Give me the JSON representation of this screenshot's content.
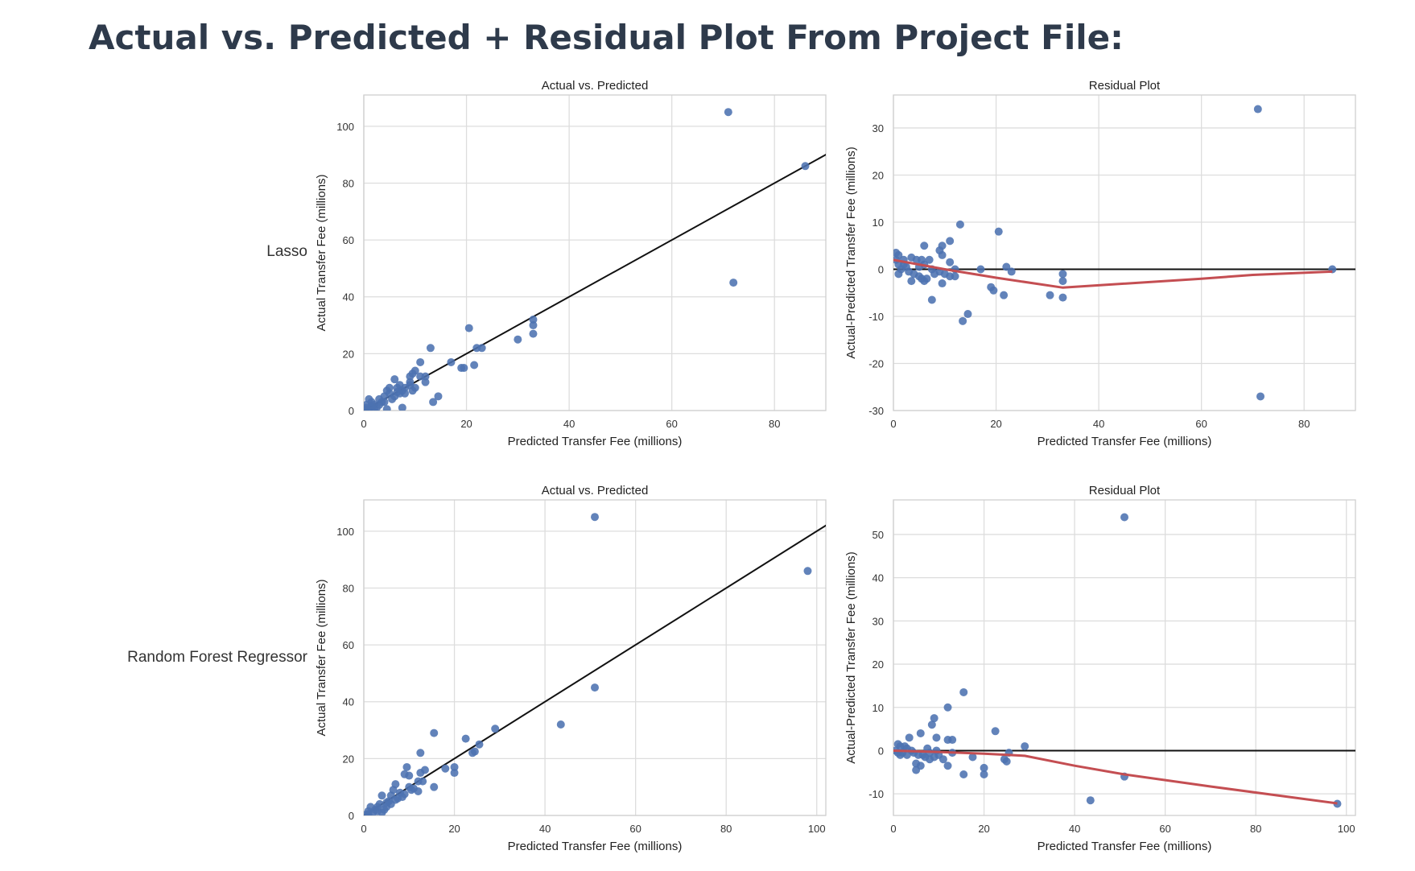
{
  "page": {
    "title": "Actual vs. Predicted + Residual Plot From Project File:",
    "rows": [
      {
        "label": "Lasso"
      },
      {
        "label": "Random Forest Regressor"
      }
    ]
  },
  "colors": {
    "points": "#4c72b0",
    "identity_line": "#111111",
    "zero_line": "#111111",
    "trend_line": "#c44e52",
    "grid": "#dddddd",
    "frame": "#cfcfcf"
  },
  "chart_data": [
    {
      "id": "lasso-actual-vs-predicted",
      "type": "scatter",
      "title": "Actual vs. Predicted",
      "xlabel": "Predicted Transfer Fee (millions)",
      "ylabel": "Actual Transfer Fee (millions)",
      "xlim": [
        0,
        90
      ],
      "ylim": [
        0,
        111
      ],
      "xticks": [
        0,
        20,
        40,
        60,
        80
      ],
      "yticks": [
        0,
        20,
        40,
        60,
        80,
        100
      ],
      "grid": true,
      "reference_line": {
        "type": "identity"
      },
      "points": [
        [
          71,
          105
        ],
        [
          86,
          86
        ],
        [
          72,
          45
        ],
        [
          33,
          32
        ],
        [
          33,
          30
        ],
        [
          33,
          27
        ],
        [
          30,
          25
        ],
        [
          20.5,
          29
        ],
        [
          22,
          22
        ],
        [
          23,
          22
        ],
        [
          21.5,
          16
        ],
        [
          19,
          15
        ],
        [
          19.5,
          15
        ],
        [
          17,
          17
        ],
        [
          13,
          22
        ],
        [
          14.5,
          5
        ],
        [
          13.5,
          3
        ],
        [
          11,
          17
        ],
        [
          12,
          12
        ],
        [
          12,
          10
        ],
        [
          11,
          12
        ],
        [
          10,
          14
        ],
        [
          9.5,
          13
        ],
        [
          9,
          12
        ],
        [
          10,
          8
        ],
        [
          9,
          9
        ],
        [
          8,
          8
        ],
        [
          9.5,
          7
        ],
        [
          7,
          9
        ],
        [
          6.5,
          8
        ],
        [
          6,
          11
        ],
        [
          7,
          6
        ],
        [
          6,
          5
        ],
        [
          5,
          6
        ],
        [
          4.5,
          7
        ],
        [
          5.5,
          4
        ],
        [
          4,
          5
        ],
        [
          4,
          3
        ],
        [
          3.5,
          3
        ],
        [
          7.5,
          1
        ],
        [
          3,
          2
        ],
        [
          2.5,
          1
        ],
        [
          2,
          2
        ],
        [
          1.5,
          3
        ],
        [
          1,
          4
        ],
        [
          0.5,
          2
        ],
        [
          0.5,
          1
        ],
        [
          1,
          0.5
        ],
        [
          0.3,
          0.3
        ],
        [
          1.5,
          1.5
        ],
        [
          5,
          8
        ],
        [
          8,
          6
        ],
        [
          6.5,
          6.5
        ],
        [
          7.5,
          7
        ],
        [
          9,
          10
        ],
        [
          3,
          4
        ],
        [
          2,
          0.5
        ],
        [
          4.5,
          0.5
        ]
      ]
    },
    {
      "id": "lasso-residual-plot",
      "type": "scatter",
      "title": "Residual Plot",
      "xlabel": "Predicted Transfer Fee (millions)",
      "ylabel": "Actual-Predicted Transfer Fee (millions)",
      "xlim": [
        0,
        90
      ],
      "ylim": [
        -30,
        37
      ],
      "xticks": [
        0,
        20,
        40,
        60,
        80
      ],
      "yticks": [
        -30,
        -20,
        -10,
        0,
        10,
        20,
        30
      ],
      "grid": true,
      "reference_line": {
        "type": "horizontal",
        "y": 0
      },
      "points": [
        [
          71,
          34
        ],
        [
          71.5,
          -27
        ],
        [
          85.5,
          0
        ],
        [
          20.5,
          8
        ],
        [
          13,
          9.5
        ],
        [
          11,
          6
        ],
        [
          9.5,
          5
        ],
        [
          6,
          5
        ],
        [
          9,
          4
        ],
        [
          9.5,
          3
        ],
        [
          0.5,
          3.5
        ],
        [
          1,
          3
        ],
        [
          0.5,
          2
        ],
        [
          2,
          2
        ],
        [
          3.5,
          2.5
        ],
        [
          4.5,
          2
        ],
        [
          5.5,
          2
        ],
        [
          7,
          2
        ],
        [
          6,
          1
        ],
        [
          11,
          1.5
        ],
        [
          1,
          1
        ],
        [
          1.5,
          0
        ],
        [
          2.5,
          0.5
        ],
        [
          3,
          -0.5
        ],
        [
          1,
          -1
        ],
        [
          4,
          -1
        ],
        [
          5,
          -1.5
        ],
        [
          5.5,
          -2
        ],
        [
          6.5,
          -2
        ],
        [
          8,
          -1
        ],
        [
          9,
          -0.5
        ],
        [
          10,
          -1
        ],
        [
          11,
          -1.5
        ],
        [
          12,
          0
        ],
        [
          17,
          0
        ],
        [
          22,
          0.5
        ],
        [
          23,
          -0.5
        ],
        [
          3.5,
          -2.5
        ],
        [
          6,
          -2.5
        ],
        [
          9.5,
          -3
        ],
        [
          12,
          -1.5
        ],
        [
          19,
          -3.8
        ],
        [
          19.5,
          -4.5
        ],
        [
          21.5,
          -5.5
        ],
        [
          30.5,
          -5.5
        ],
        [
          33,
          -1
        ],
        [
          33,
          -2.5
        ],
        [
          33,
          -6
        ],
        [
          7.5,
          -6.5
        ],
        [
          14.5,
          -9.5
        ],
        [
          13.5,
          -11
        ],
        [
          5,
          0.5
        ],
        [
          7.5,
          0
        ],
        [
          2,
          1
        ]
      ],
      "trend_line": [
        [
          0,
          2
        ],
        [
          5,
          1
        ],
        [
          10,
          0
        ],
        [
          20,
          -1.8
        ],
        [
          33,
          -3.9
        ],
        [
          60,
          -2
        ],
        [
          70,
          -1.2
        ],
        [
          85.5,
          -0.5
        ]
      ]
    },
    {
      "id": "rf-actual-vs-predicted",
      "type": "scatter",
      "title": "Actual vs. Predicted",
      "xlabel": "Predicted Transfer Fee (millions)",
      "ylabel": "Actual Transfer Fee (millions)",
      "xlim": [
        0,
        102
      ],
      "ylim": [
        0,
        111
      ],
      "xticks": [
        0,
        20,
        40,
        60,
        80,
        100
      ],
      "yticks": [
        0,
        20,
        40,
        60,
        80,
        100
      ],
      "grid": true,
      "reference_line": {
        "type": "identity"
      },
      "points": [
        [
          51,
          105
        ],
        [
          98,
          86
        ],
        [
          51,
          45
        ],
        [
          43.5,
          32
        ],
        [
          29,
          30.5
        ],
        [
          22.5,
          27
        ],
        [
          25.5,
          25
        ],
        [
          24.5,
          22.5
        ],
        [
          24,
          22
        ],
        [
          20,
          17
        ],
        [
          20,
          15
        ],
        [
          18,
          16.5
        ],
        [
          15.5,
          29
        ],
        [
          12.5,
          22
        ],
        [
          13.5,
          16
        ],
        [
          12.5,
          15
        ],
        [
          15.5,
          10
        ],
        [
          10,
          14
        ],
        [
          9,
          14.5
        ],
        [
          9.5,
          17
        ],
        [
          12,
          12
        ],
        [
          13,
          12
        ],
        [
          12,
          8.5
        ],
        [
          10.5,
          9
        ],
        [
          10,
          10
        ],
        [
          8,
          8
        ],
        [
          7,
          11
        ],
        [
          6.5,
          9
        ],
        [
          6,
          7
        ],
        [
          5.5,
          5
        ],
        [
          7.5,
          6
        ],
        [
          5,
          3
        ],
        [
          4,
          7
        ],
        [
          3.5,
          4
        ],
        [
          3,
          3
        ],
        [
          2.5,
          2
        ],
        [
          2,
          1
        ],
        [
          1.5,
          3
        ],
        [
          1,
          1.5
        ],
        [
          1,
          0.5
        ],
        [
          0.5,
          0.3
        ],
        [
          4,
          1
        ],
        [
          4.5,
          2
        ],
        [
          6,
          4
        ],
        [
          8.5,
          6.5
        ],
        [
          9,
          7.5
        ],
        [
          11,
          9.5
        ],
        [
          3,
          1.5
        ],
        [
          5,
          4.5
        ],
        [
          7,
          5.5
        ]
      ]
    },
    {
      "id": "rf-residual-plot",
      "type": "scatter",
      "title": "Residual Plot",
      "xlabel": "Predicted Transfer Fee (millions)",
      "ylabel": "Actual-Predicted Transfer Fee (millions)",
      "xlim": [
        0,
        102
      ],
      "ylim": [
        -15,
        58
      ],
      "xticks": [
        0,
        20,
        40,
        60,
        80,
        100
      ],
      "yticks": [
        -10,
        0,
        10,
        20,
        30,
        40,
        50
      ],
      "grid": true,
      "reference_line": {
        "type": "horizontal",
        "y": 0
      },
      "points": [
        [
          51,
          54
        ],
        [
          15.5,
          13.5
        ],
        [
          12,
          10
        ],
        [
          9,
          7.5
        ],
        [
          8.5,
          6
        ],
        [
          22.5,
          4.5
        ],
        [
          6,
          4
        ],
        [
          3.5,
          3
        ],
        [
          9.5,
          3
        ],
        [
          12,
          2.5
        ],
        [
          13,
          2.5
        ],
        [
          29,
          1
        ],
        [
          1,
          1.5
        ],
        [
          1.5,
          1
        ],
        [
          2.5,
          1
        ],
        [
          3,
          0.5
        ],
        [
          0.5,
          0
        ],
        [
          1,
          -0.5
        ],
        [
          1.5,
          -1
        ],
        [
          2,
          -0.5
        ],
        [
          4,
          0
        ],
        [
          4.5,
          -0.5
        ],
        [
          5.5,
          -1
        ],
        [
          6.5,
          -1
        ],
        [
          7,
          -1.5
        ],
        [
          8,
          -2
        ],
        [
          9,
          -1.5
        ],
        [
          10,
          -1
        ],
        [
          7.5,
          0.5
        ],
        [
          9.5,
          0
        ],
        [
          13,
          -0.5
        ],
        [
          25.5,
          -0.5
        ],
        [
          17.5,
          -1.5
        ],
        [
          24.5,
          -2
        ],
        [
          25,
          -2.5
        ],
        [
          12,
          -3.5
        ],
        [
          6,
          -3.5
        ],
        [
          5,
          -3
        ],
        [
          5,
          -4.5
        ],
        [
          15.5,
          -5.5
        ],
        [
          20,
          -5.5
        ],
        [
          20,
          -4
        ],
        [
          51,
          -6
        ],
        [
          43.5,
          -11.5
        ],
        [
          98,
          -12.3
        ],
        [
          3,
          -1
        ],
        [
          8,
          -0.5
        ],
        [
          11,
          -2
        ]
      ],
      "trend_line": [
        [
          0,
          0
        ],
        [
          10,
          -0.3
        ],
        [
          20,
          -0.7
        ],
        [
          29,
          -1.2
        ],
        [
          40,
          -3.5
        ],
        [
          51,
          -5.5
        ],
        [
          70,
          -8.3
        ],
        [
          98,
          -12.2
        ]
      ]
    }
  ]
}
